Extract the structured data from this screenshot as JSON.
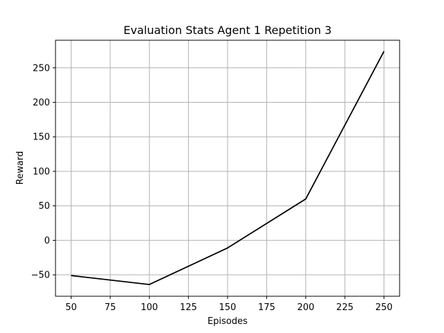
{
  "chart_data": {
    "type": "line",
    "title": "Evaluation Stats Agent 1 Repetition 3",
    "xlabel": "Episodes",
    "ylabel": "Reward",
    "xlim": [
      40,
      260
    ],
    "ylim": [
      -81,
      290
    ],
    "xticks": [
      50,
      75,
      100,
      125,
      150,
      175,
      200,
      225,
      250
    ],
    "yticks": [
      -50,
      0,
      50,
      100,
      150,
      200,
      250
    ],
    "grid": true,
    "series": [
      {
        "color": "#000000",
        "x": [
          50,
          100,
          150,
          200,
          250
        ],
        "y": [
          -51,
          -64,
          -11,
          60,
          274
        ]
      }
    ]
  }
}
